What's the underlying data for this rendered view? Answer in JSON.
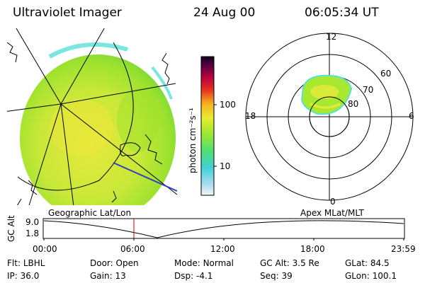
{
  "header": {
    "instrument": "Ultraviolet Imager",
    "date": "24 Aug 00",
    "time": "06:05:34 UT"
  },
  "left_panel": {
    "caption": "Geographic Lat/Lon"
  },
  "right_panel": {
    "caption": "Apex MLat/MLT",
    "mlt_labels": {
      "top": "12",
      "bottom": "0",
      "left": "18",
      "right": "6"
    },
    "lat_labels": [
      "60",
      "70",
      "80"
    ]
  },
  "colorbar": {
    "label": "photon cm⁻²s⁻¹",
    "ticks": [
      "100",
      "10"
    ]
  },
  "timeline": {
    "ylabel": "GC Alt",
    "y_ticks": [
      "9.0",
      "1.8"
    ],
    "x_ticks": [
      "00:00",
      "06:00",
      "12:00",
      "18:00",
      "23:59"
    ],
    "marker_time": "06:05:34"
  },
  "status": {
    "row1": [
      {
        "label": "Flt:",
        "value": "LBHL"
      },
      {
        "label": "Door:",
        "value": "Open"
      },
      {
        "label": "Mode:",
        "value": "Normal"
      },
      {
        "label": "GC Alt:",
        "value": "3.5 Re"
      },
      {
        "label": "GLat:",
        "value": "84.5"
      }
    ],
    "row2": [
      {
        "label": "IP:",
        "value": "36.0"
      },
      {
        "label": "Gain:",
        "value": "13"
      },
      {
        "label": "Dsp:",
        "value": "-4.1"
      },
      {
        "label": "Seq:",
        "value": "39"
      },
      {
        "label": "GLon:",
        "value": "100.1"
      }
    ]
  },
  "colors": {
    "image_green": "#a8e830",
    "image_yellow": "#e8ec38",
    "image_cyan": "#58e0d8",
    "marker_red": "#c00000"
  }
}
